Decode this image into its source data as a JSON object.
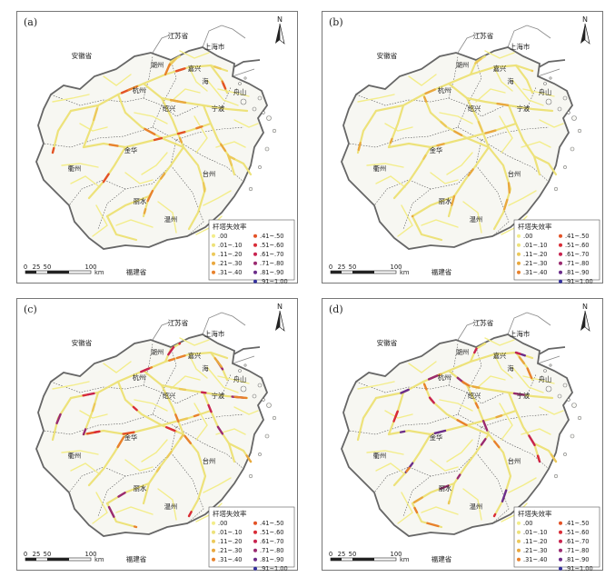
{
  "panels": [
    {
      "label": "(a)"
    },
    {
      "label": "(b)"
    },
    {
      "label": "(c)"
    },
    {
      "label": "(d)"
    }
  ],
  "places": {
    "anhui": "安徽省",
    "jiangsu": "江苏省",
    "shanghai": "上海市",
    "fujian": "福建省",
    "huzhou": "湖州",
    "jiaxing": "嘉兴",
    "hangzhou": "杭州",
    "shaoxing": "绍兴",
    "ningbo": "宁波",
    "zhoushan": "舟山",
    "jinhua": "金华",
    "quzhou": "衢州",
    "taizhou": "台州",
    "lishui": "丽水",
    "wenzhou": "温州",
    "bay": "海"
  },
  "north_label": "N",
  "scale": {
    "ticks": [
      "0",
      "25",
      "50",
      "100"
    ],
    "unit": "km"
  },
  "legend": {
    "title": "杆塔失效率",
    "classes": [
      {
        "label": ".00",
        "color": "#f3ed8a"
      },
      {
        "label": ".01~.10",
        "color": "#ede27a"
      },
      {
        "label": ".11~.20",
        "color": "#ecc95a"
      },
      {
        "label": ".21~.30",
        "color": "#e9a83e"
      },
      {
        "label": ".31~.40",
        "color": "#e8812c"
      },
      {
        "label": ".41~.50",
        "color": "#e35226"
      },
      {
        "label": ".51~.60",
        "color": "#d92c37"
      },
      {
        "label": ".61~.70",
        "color": "#c8234f"
      },
      {
        "label": ".71~.80",
        "color": "#9a2a70"
      },
      {
        "label": ".81~.90",
        "color": "#6b2c8a"
      },
      {
        "label": ".91~1.00",
        "color": "#33309e"
      }
    ]
  }
}
